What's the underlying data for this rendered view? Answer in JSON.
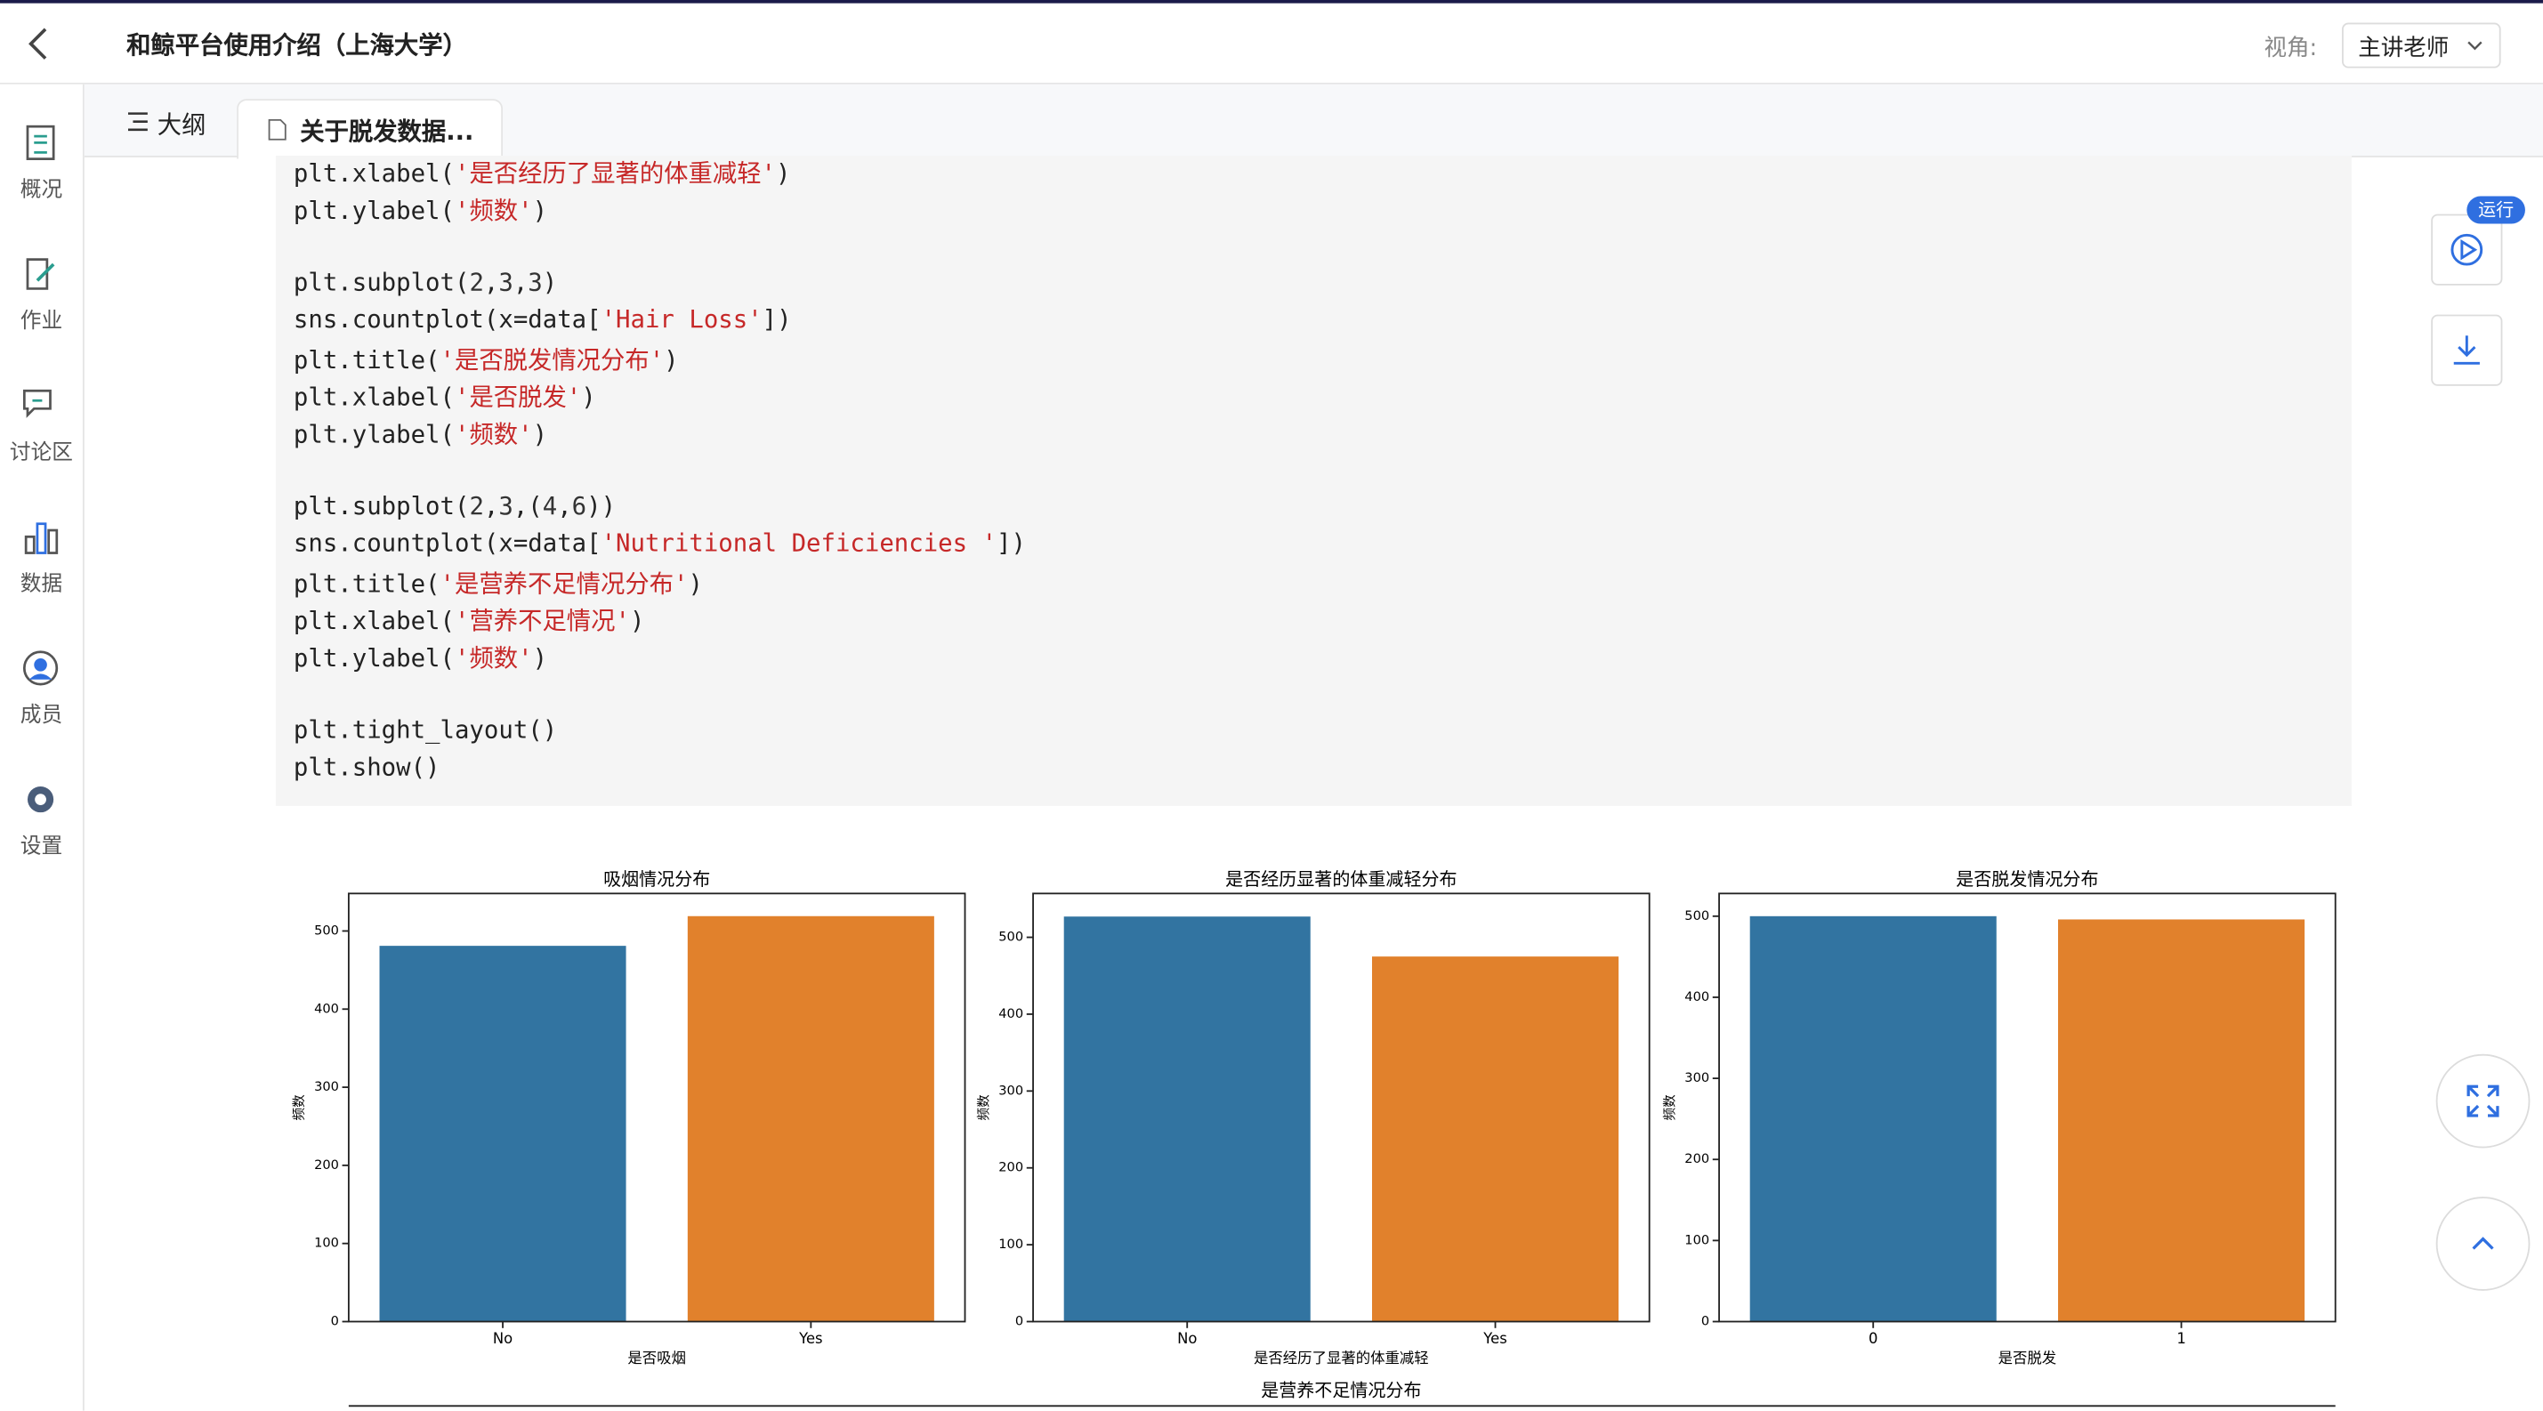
{
  "header": {
    "title": "和鲸平台使用介绍（上海大学）",
    "view_label": "视角:",
    "view_value": "主讲老师"
  },
  "sidebar": [
    "概况",
    "作业",
    "讨论区",
    "数据",
    "成员",
    "设置"
  ],
  "tabs": [
    "大纲",
    "关于脱发数据..."
  ],
  "run_badge": "运行",
  "code_lines": [
    [
      "plt.xlabel(",
      "'是否经历了显著的体重减轻'",
      ")"
    ],
    [
      "plt.ylabel(",
      "'频数'",
      ")"
    ],
    [],
    [
      "plt.subplot(",
      "2",
      ",",
      "3",
      ",",
      "3",
      ")"
    ],
    [
      "sns.countplot(x=data[",
      "'Hair Loss'",
      "])"
    ],
    [
      "plt.title(",
      "'是否脱发情况分布'",
      ")"
    ],
    [
      "plt.xlabel(",
      "'是否脱发'",
      ")"
    ],
    [
      "plt.ylabel(",
      "'频数'",
      ")"
    ],
    [],
    [
      "plt.subplot(",
      "2",
      ",",
      "3",
      ",(",
      "4",
      ",",
      "6",
      "))"
    ],
    [
      "sns.countplot(x=data[",
      "'Nutritional Deficiencies '",
      "])"
    ],
    [
      "plt.title(",
      "'是营养不足情况分布'",
      ")"
    ],
    [
      "plt.xlabel(",
      "'营养不足情况'",
      ")"
    ],
    [
      "plt.ylabel(",
      "'频数'",
      ")"
    ],
    [],
    [
      "plt.tight_layout()"
    ],
    [
      "plt.show()"
    ]
  ],
  "chart_data": [
    {
      "type": "bar",
      "title": "吸烟情况分布",
      "xlabel": "是否吸烟",
      "ylabel": "频数",
      "categories": [
        "No",
        "Yes"
      ],
      "values": [
        481,
        519
      ],
      "colors": [
        "#3274a1",
        "#e1812c"
      ],
      "ylim": [
        0,
        548
      ],
      "yticks": [
        0,
        100,
        200,
        300,
        400,
        500
      ]
    },
    {
      "type": "bar",
      "title": "是否经历显著的体重减轻分布",
      "xlabel": "是否经历了显著的体重减轻",
      "ylabel": "频数",
      "categories": [
        "No",
        "Yes"
      ],
      "values": [
        527,
        475
      ],
      "colors": [
        "#3274a1",
        "#e1812c"
      ],
      "ylim": [
        0,
        557
      ],
      "yticks": [
        0,
        100,
        200,
        300,
        400,
        500
      ]
    },
    {
      "type": "bar",
      "title": "是否脱发情况分布",
      "xlabel": "是否脱发",
      "ylabel": "频数",
      "categories": [
        "0",
        "1"
      ],
      "values": [
        500,
        496
      ],
      "colors": [
        "#3274a1",
        "#e1812c"
      ],
      "ylim": [
        0,
        528
      ],
      "yticks": [
        0,
        100,
        200,
        300,
        400,
        500
      ]
    },
    {
      "type": "bar",
      "title": "是营养不足情况分布"
    }
  ]
}
